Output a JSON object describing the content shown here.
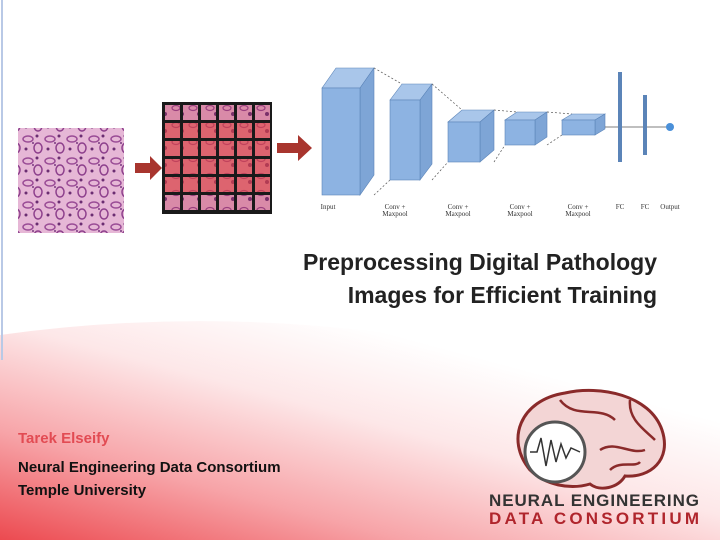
{
  "title": [
    "Preprocessing Digital Pathology",
    "Images for Efficient Training"
  ],
  "author": "Tarek Elseify",
  "affiliation": [
    "Neural Engineering Data Consortium",
    "Temple University"
  ],
  "network": {
    "layers": [
      {
        "lines": [
          "Input"
        ]
      },
      {
        "lines": [
          "Conv +",
          "Maxpool"
        ]
      },
      {
        "lines": [
          "Conv +",
          "Maxpool"
        ]
      },
      {
        "lines": [
          "Conv +",
          "Maxpool"
        ]
      },
      {
        "lines": [
          "Conv +",
          "Maxpool"
        ]
      },
      {
        "lines": [
          "FC"
        ]
      },
      {
        "lines": [
          "FC"
        ]
      },
      {
        "lines": [
          "Output"
        ]
      }
    ]
  },
  "logo": {
    "lines": [
      "NEURAL ENGINEERING",
      "DATA CONSORTIUM"
    ]
  }
}
